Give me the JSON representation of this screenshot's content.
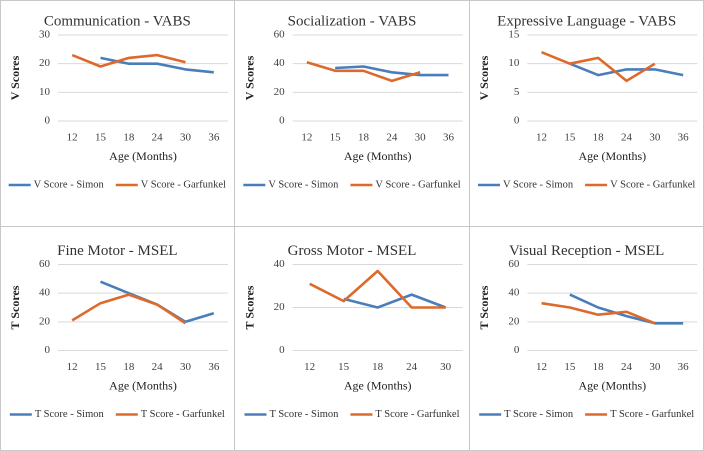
{
  "chart_data": [
    {
      "type": "line",
      "title": "Communication - VABS",
      "x_label": "Age (Months)",
      "y_label": "V Scores",
      "categories": [
        "12",
        "15",
        "18",
        "24",
        "30",
        "36"
      ],
      "ylim": [
        0,
        30
      ],
      "yticks": [
        0,
        10,
        20,
        30
      ],
      "grid": true,
      "legend": "bottom",
      "series": [
        {
          "name": "V Score - Simon",
          "color": "#4a7ebb",
          "values": [
            null,
            22,
            20,
            20,
            18,
            17
          ]
        },
        {
          "name": "V Score - Garfunkel",
          "color": "#dd6a2c",
          "values": [
            23,
            19,
            22,
            23,
            20.5,
            null
          ]
        }
      ]
    },
    {
      "type": "line",
      "title": "Socialization - VABS",
      "x_label": "Age (Months)",
      "y_label": "V Scores",
      "categories": [
        "12",
        "15",
        "18",
        "24",
        "30",
        "36"
      ],
      "ylim": [
        0,
        60
      ],
      "yticks": [
        0,
        20,
        40,
        60
      ],
      "grid": true,
      "legend": "bottom",
      "series": [
        {
          "name": "V Score - Simon",
          "color": "#4a7ebb",
          "values": [
            null,
            37,
            38,
            34,
            32,
            32
          ]
        },
        {
          "name": "V Score - Garfunkel",
          "color": "#dd6a2c",
          "values": [
            41,
            35,
            35,
            28,
            34,
            null
          ]
        }
      ]
    },
    {
      "type": "line",
      "title": "Expressive Language - VABS",
      "x_label": "Age (Months)",
      "y_label": "V Scores",
      "categories": [
        "12",
        "15",
        "18",
        "24",
        "30",
        "36"
      ],
      "ylim": [
        0,
        15
      ],
      "yticks": [
        0,
        5,
        10,
        15
      ],
      "grid": true,
      "legend": "bottom",
      "series": [
        {
          "name": "V Score - Simon",
          "color": "#4a7ebb",
          "values": [
            null,
            10,
            8,
            9,
            9,
            8
          ]
        },
        {
          "name": "V Score - Garfunkel",
          "color": "#dd6a2c",
          "values": [
            12,
            10,
            11,
            7,
            10,
            null
          ]
        }
      ]
    },
    {
      "type": "line",
      "title": "Fine Motor - MSEL",
      "x_label": "Age (Months)",
      "y_label": "T Scores",
      "categories": [
        "12",
        "15",
        "18",
        "24",
        "30",
        "36"
      ],
      "ylim": [
        0,
        60
      ],
      "yticks": [
        0,
        20,
        40,
        60
      ],
      "grid": true,
      "legend": "bottom",
      "series": [
        {
          "name": "T Score - Simon",
          "color": "#4a7ebb",
          "values": [
            null,
            48,
            40,
            32,
            20,
            26
          ]
        },
        {
          "name": "T Score - Garfunkel",
          "color": "#dd6a2c",
          "values": [
            21,
            33,
            39,
            32,
            19,
            null
          ]
        }
      ]
    },
    {
      "type": "line",
      "title": "Gross Motor - MSEL",
      "x_label": "Age (Months)",
      "y_label": "T Scores",
      "categories": [
        "12",
        "15",
        "18",
        "24",
        "30"
      ],
      "ylim": [
        0,
        40
      ],
      "yticks": [
        0,
        20,
        40
      ],
      "grid": true,
      "legend": "bottom",
      "series": [
        {
          "name": "T Score - Simon",
          "color": "#4a7ebb",
          "values": [
            null,
            24,
            20,
            26,
            20
          ]
        },
        {
          "name": "T Score - Garfunkel",
          "color": "#dd6a2c",
          "values": [
            31,
            23,
            37,
            20,
            20
          ]
        }
      ]
    },
    {
      "type": "line",
      "title": "Visual Reception - MSEL",
      "x_label": "Age (Months)",
      "y_label": "T Scores",
      "categories": [
        "12",
        "15",
        "18",
        "24",
        "30",
        "36"
      ],
      "ylim": [
        0,
        60
      ],
      "yticks": [
        0,
        20,
        40,
        60
      ],
      "grid": true,
      "legend": "bottom",
      "series": [
        {
          "name": "T Score - Simon",
          "color": "#4a7ebb",
          "values": [
            null,
            39,
            30,
            24,
            19,
            19
          ]
        },
        {
          "name": "T Score - Garfunkel",
          "color": "#dd6a2c",
          "values": [
            33,
            30,
            25,
            27,
            19,
            null
          ]
        }
      ]
    }
  ]
}
